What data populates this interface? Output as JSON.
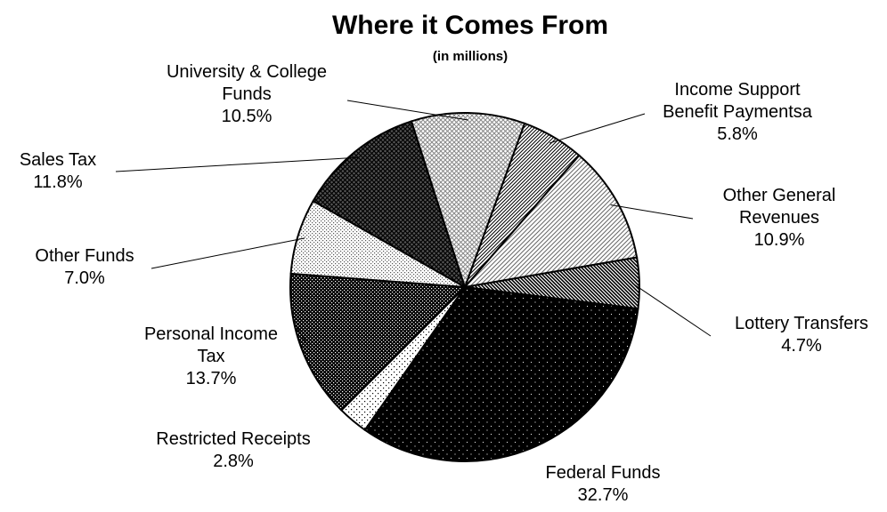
{
  "chart_data": {
    "type": "pie",
    "title": "Where it Comes From",
    "subtitle": "(in millions)",
    "legend": "none",
    "slices": [
      {
        "name": "Income Support Benefit Paymentsa",
        "label_lines": [
          "Income Support",
          "Benefit Paymentsa"
        ],
        "pct_text": "5.8%",
        "value": 5.8,
        "pattern": "diag-fine"
      },
      {
        "name": "Other General Revenues",
        "label_lines": [
          "Other General",
          "Revenues"
        ],
        "pct_text": "10.9%",
        "value": 10.9,
        "pattern": "diag-light"
      },
      {
        "name": "Lottery Transfers",
        "label_lines": [
          "Lottery Transfers"
        ],
        "pct_text": "4.7%",
        "value": 4.7,
        "pattern": "diag-dark"
      },
      {
        "name": "Federal Funds",
        "label_lines": [
          "Federal Funds"
        ],
        "pct_text": "32.7%",
        "value": 32.7,
        "pattern": "black-dots"
      },
      {
        "name": "Restricted Receipts",
        "label_lines": [
          "Restricted Receipts"
        ],
        "pct_text": "2.8%",
        "value": 2.8,
        "pattern": "sparse-dots"
      },
      {
        "name": "Personal Income Tax",
        "label_lines": [
          "Personal Income",
          "Tax"
        ],
        "pct_text": "13.7%",
        "value": 13.7,
        "pattern": "dark-check"
      },
      {
        "name": "Other Funds",
        "label_lines": [
          "Other Funds"
        ],
        "pct_text": "7.0%",
        "value": 7.0,
        "pattern": "light-dots"
      },
      {
        "name": "Sales Tax",
        "label_lines": [
          "Sales Tax"
        ],
        "pct_text": "11.8%",
        "value": 11.8,
        "pattern": "dark-cross"
      },
      {
        "name": "University & College Funds",
        "label_lines": [
          "University & College",
          "Funds"
        ],
        "pct_text": "10.5%",
        "value": 10.5,
        "pattern": "light-cross"
      }
    ]
  }
}
